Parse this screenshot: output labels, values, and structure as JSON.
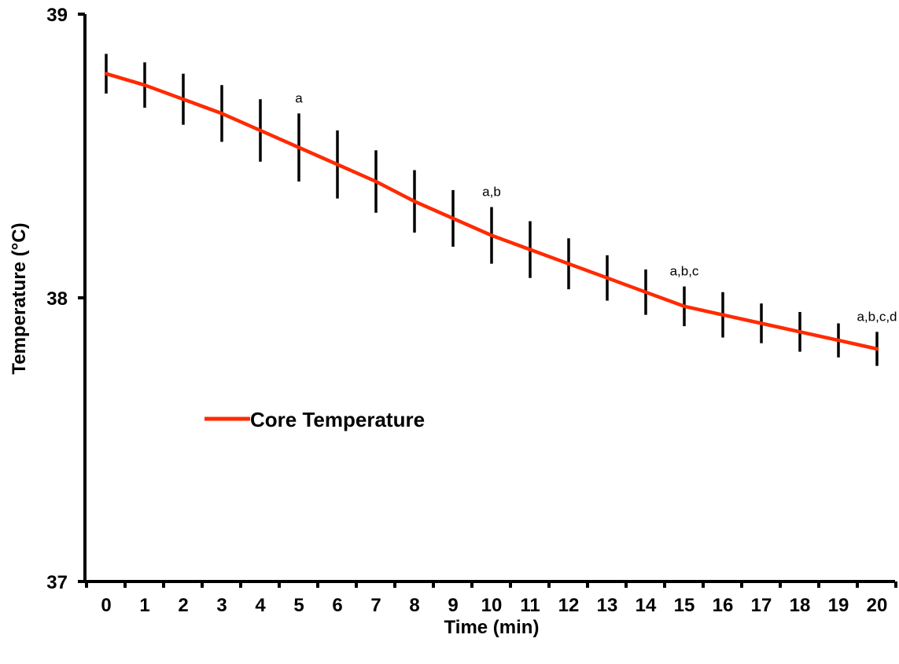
{
  "chart_data": {
    "type": "line",
    "title": "",
    "xlabel": "Time (min)",
    "ylabel": "Temperature (°C)",
    "x": [
      0,
      1,
      2,
      3,
      4,
      5,
      6,
      7,
      8,
      9,
      10,
      11,
      12,
      13,
      14,
      15,
      16,
      17,
      18,
      19,
      20
    ],
    "xticks": [
      "0",
      "1",
      "2",
      "3",
      "4",
      "5",
      "6",
      "7",
      "8",
      "9",
      "10",
      "11",
      "12",
      "13",
      "14",
      "15",
      "16",
      "17",
      "18",
      "19",
      "20"
    ],
    "yticks": [
      "37",
      "38",
      "39"
    ],
    "ylim": [
      37,
      39
    ],
    "grid": false,
    "legend_position": "center-left",
    "series": [
      {
        "name": "Core Temperature",
        "color": "#ff2a00",
        "values": [
          38.79,
          38.75,
          38.7,
          38.65,
          38.59,
          38.53,
          38.47,
          38.41,
          38.34,
          38.28,
          38.22,
          38.17,
          38.12,
          38.07,
          38.02,
          37.97,
          37.94,
          37.91,
          37.88,
          37.85,
          37.82
        ],
        "error": [
          0.07,
          0.08,
          0.09,
          0.1,
          0.11,
          0.12,
          0.12,
          0.11,
          0.11,
          0.1,
          0.1,
          0.1,
          0.09,
          0.08,
          0.08,
          0.07,
          0.08,
          0.07,
          0.07,
          0.06,
          0.06
        ]
      }
    ],
    "annotations": [
      {
        "x": 5,
        "text": "a"
      },
      {
        "x": 10,
        "text": "a,b"
      },
      {
        "x": 15,
        "text": "a,b,c"
      },
      {
        "x": 20,
        "text": "a,b,c,d"
      }
    ]
  }
}
